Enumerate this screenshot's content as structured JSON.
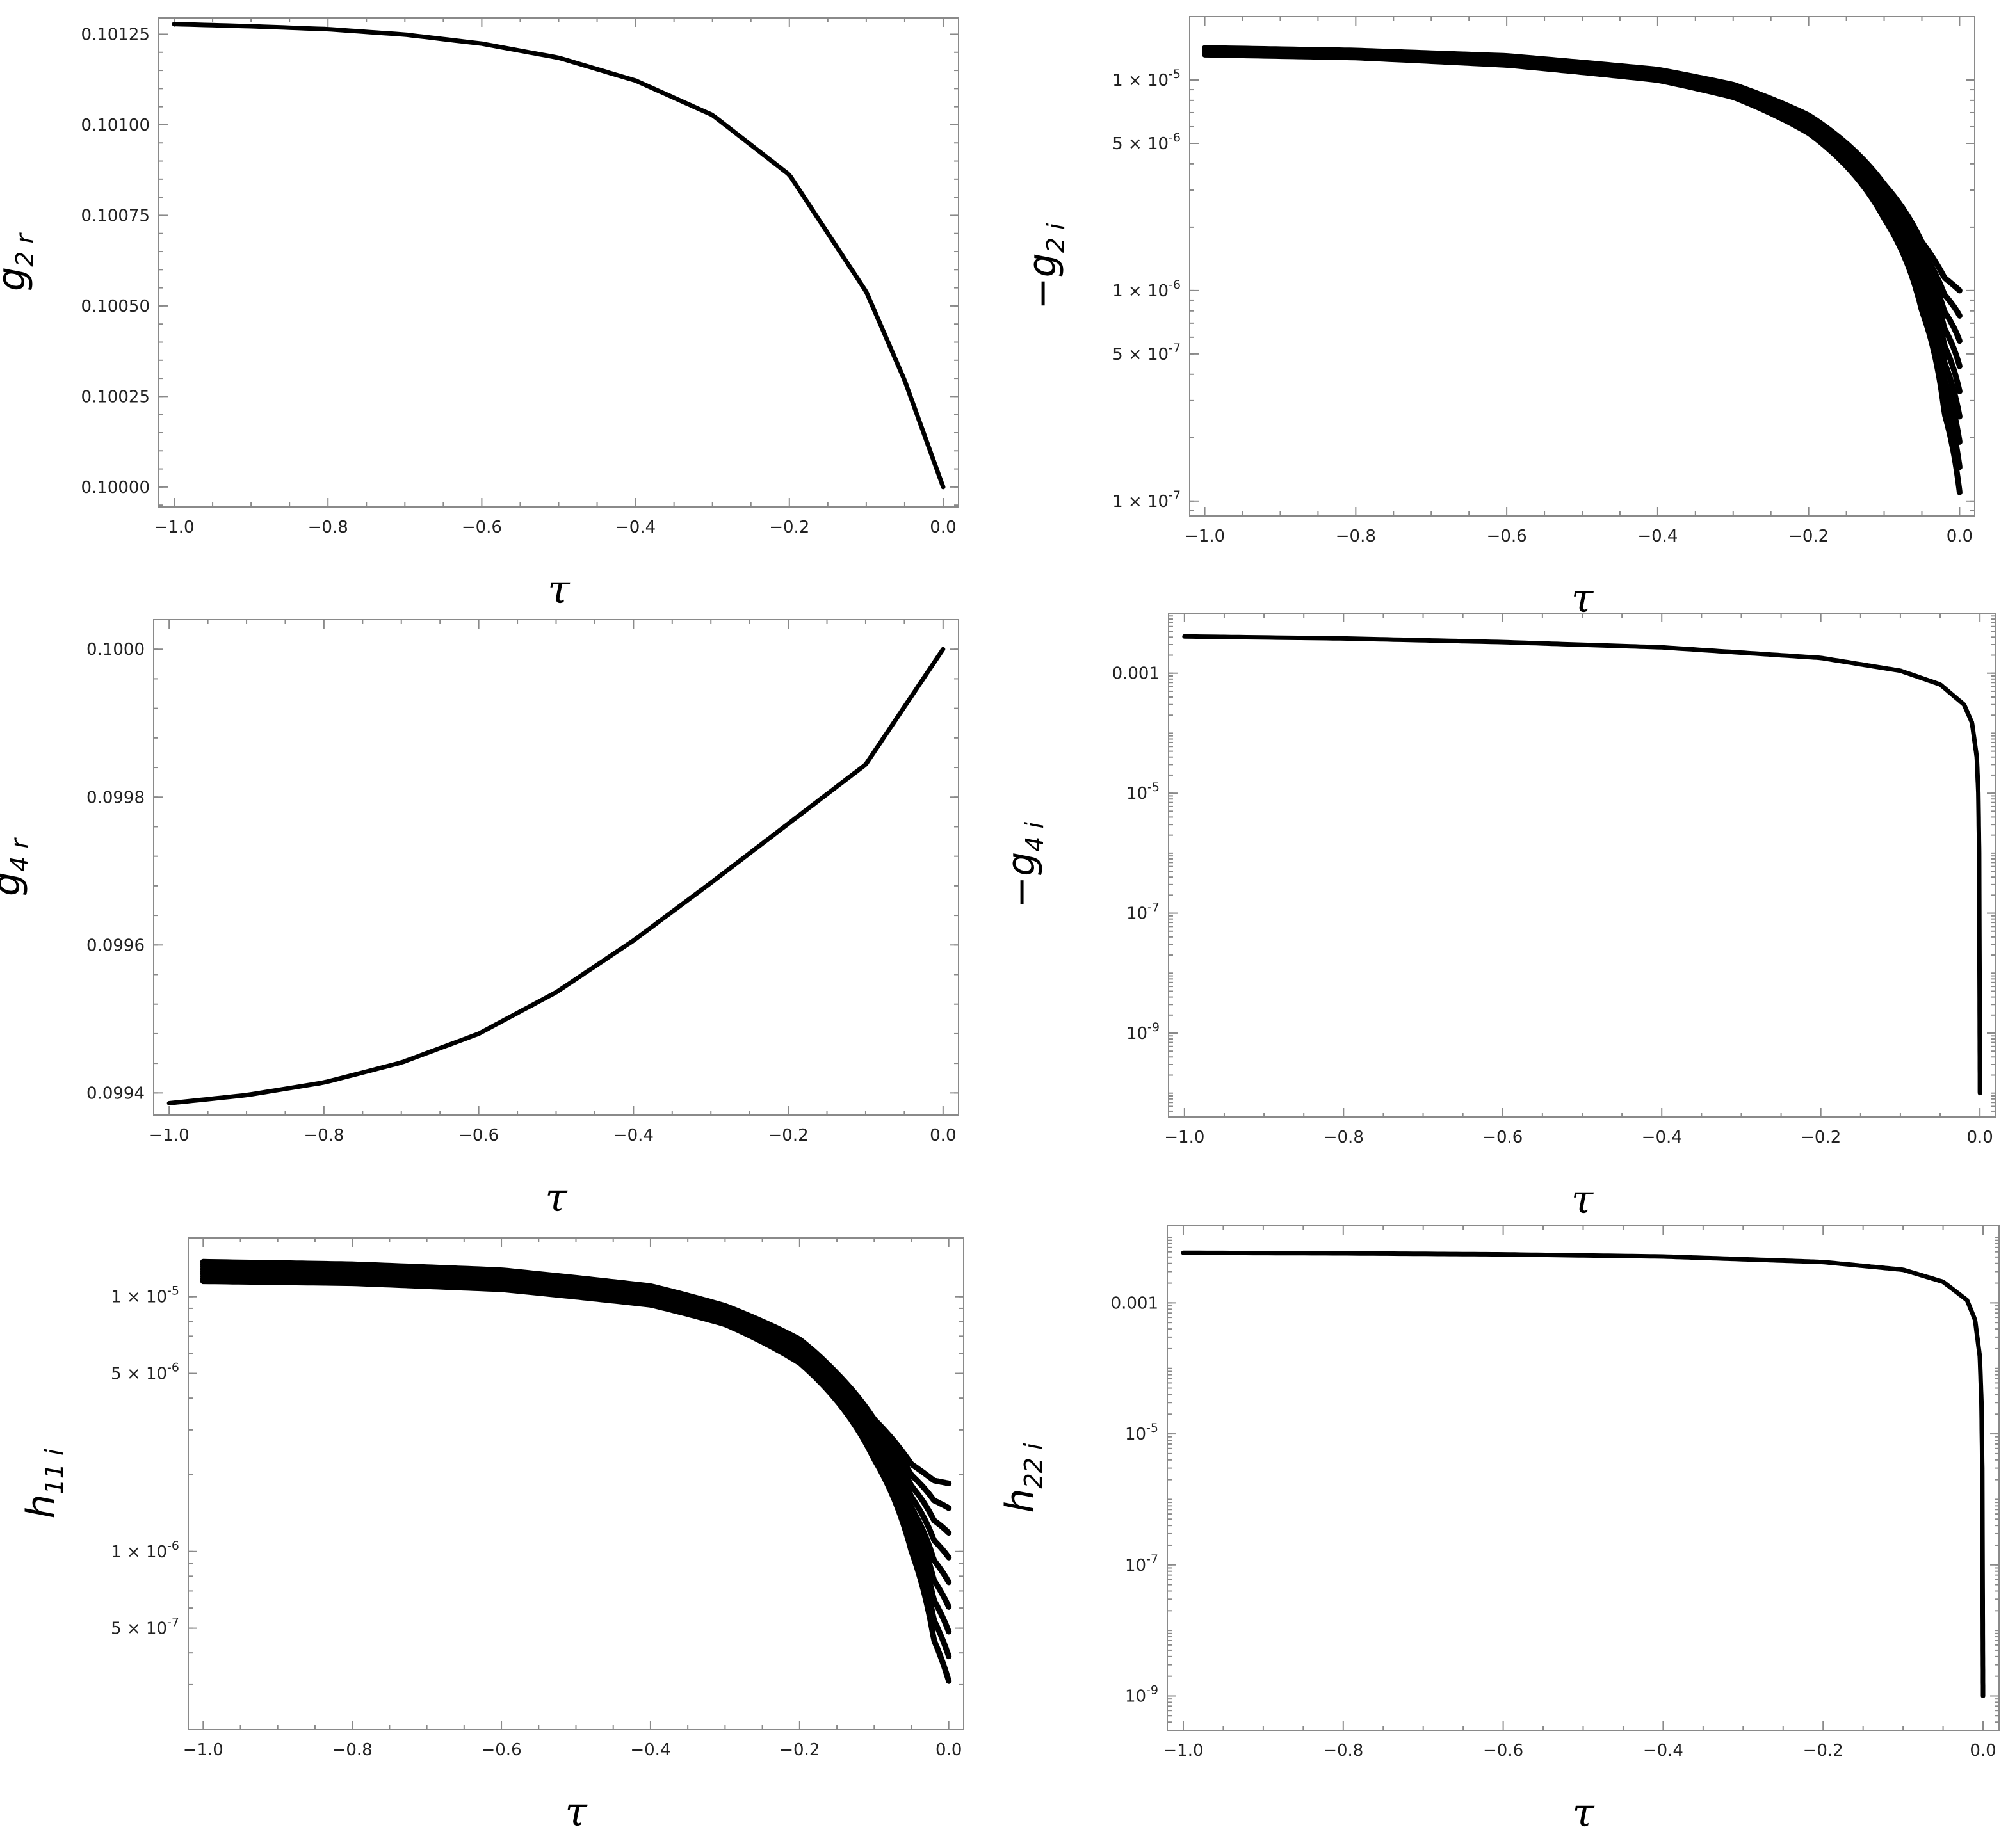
{
  "chart_data": [
    {
      "id": "g2r",
      "type": "line",
      "xlabel": "τ",
      "ylabel": {
        "main": "g",
        "sub": "2 r",
        "prefix": ""
      },
      "xlim": [
        -1.02,
        0.02
      ],
      "ylim": [
        0.099945,
        0.101295
      ],
      "log_y": false,
      "x_ticks": [
        -1.0,
        -0.8,
        -0.6,
        -0.4,
        -0.2,
        0.0
      ],
      "x_tick_labels": [
        "−1.0",
        "−0.8",
        "−0.6",
        "−0.4",
        "−0.2",
        "0.0"
      ],
      "y_ticks": [
        0.1,
        0.10025,
        0.1005,
        0.10075,
        0.101,
        0.10125
      ],
      "y_tick_labels": [
        "0.10000",
        "0.10025",
        "0.10050",
        "0.10075",
        "0.10100",
        "0.10125"
      ],
      "series": [
        {
          "x": [
            -1.0,
            -0.9,
            -0.8,
            -0.7,
            -0.6,
            -0.5,
            -0.4,
            -0.3,
            -0.2,
            -0.1,
            -0.05,
            0.0
          ],
          "values": [
            0.101278,
            0.101272,
            0.101264,
            0.101249,
            0.101224,
            0.101185,
            0.101122,
            0.101027,
            0.100862,
            0.100539,
            0.100294,
            0.1
          ]
        }
      ]
    },
    {
      "id": "g2i",
      "type": "line",
      "xlabel": "τ",
      "ylabel": {
        "main": "g",
        "sub": "2 i",
        "prefix": "−"
      },
      "xlim": [
        -1.02,
        0.02
      ],
      "ylim": [
        8.5e-08,
        2e-05
      ],
      "log_y": true,
      "x_ticks": [
        -1.0,
        -0.8,
        -0.6,
        -0.4,
        -0.2,
        0.0
      ],
      "x_tick_labels": [
        "−1.0",
        "−0.8",
        "−0.6",
        "−0.4",
        "−0.2",
        "0.0"
      ],
      "y_ticks": [
        1e-07,
        5e-07,
        1e-06,
        5e-06,
        1e-05
      ],
      "y_tick_labels": [
        "1 × 10^-7",
        "5 × 10^-7",
        "1 × 10^-6",
        "5 × 10^-6",
        "1 × 10^-5"
      ],
      "band": {
        "count": 9,
        "upper_offset_logspread": 0.08
      },
      "series": [
        {
          "x": [
            -1.0,
            -0.8,
            -0.6,
            -0.4,
            -0.3,
            -0.2,
            -0.15,
            -0.1,
            -0.05,
            -0.02,
            0.0
          ],
          "values": [
            1.42e-05,
            1.38e-05,
            1.3e-05,
            1.12e-05,
            9.5e-06,
            6.8e-06,
            5e-06,
            3.2e-06,
            1.7e-06,
            1.15e-06,
            1e-06
          ]
        },
        {
          "x": [
            -1.0,
            -0.8,
            -0.6,
            -0.4,
            -0.3,
            -0.2,
            -0.15,
            -0.1,
            -0.05,
            -0.02,
            0.0
          ],
          "values": [
            1.32e-05,
            1.28e-05,
            1.18e-05,
            1e-05,
            8.3e-06,
            5.6e-06,
            3.9e-06,
            2.2e-06,
            8e-07,
            2.6e-07,
            1.1e-07
          ]
        }
      ]
    },
    {
      "id": "g4r",
      "type": "line",
      "xlabel": "τ",
      "ylabel": {
        "main": "g",
        "sub": "4 r",
        "prefix": ""
      },
      "xlim": [
        -1.02,
        0.02
      ],
      "ylim": [
        0.09937,
        0.10004
      ],
      "log_y": false,
      "x_ticks": [
        -1.0,
        -0.8,
        -0.6,
        -0.4,
        -0.2,
        0.0
      ],
      "x_tick_labels": [
        "−1.0",
        "−0.8",
        "−0.6",
        "−0.4",
        "−0.2",
        "0.0"
      ],
      "y_ticks": [
        0.0994,
        0.0996,
        0.0998,
        0.1
      ],
      "y_tick_labels": [
        "0.0994",
        "0.0996",
        "0.0998",
        "0.1000"
      ],
      "series": [
        {
          "x": [
            -1.0,
            -0.9,
            -0.8,
            -0.7,
            -0.6,
            -0.5,
            -0.4,
            -0.3,
            -0.2,
            -0.1,
            0.0
          ],
          "values": [
            0.099386,
            0.099397,
            0.099414,
            0.099441,
            0.09948,
            0.099536,
            0.099606,
            0.099684,
            0.099764,
            0.099844,
            0.1
          ]
        }
      ]
    },
    {
      "id": "g4i",
      "type": "line",
      "xlabel": "τ",
      "ylabel": {
        "main": "g",
        "sub": "4 i",
        "prefix": "−"
      },
      "xlim": [
        -1.02,
        0.02
      ],
      "ylim": [
        4e-11,
        0.01
      ],
      "log_y": true,
      "x_ticks": [
        -1.0,
        -0.8,
        -0.6,
        -0.4,
        -0.2,
        0.0
      ],
      "x_tick_labels": [
        "−1.0",
        "−0.8",
        "−0.6",
        "−0.4",
        "−0.2",
        "0.0"
      ],
      "y_ticks": [
        0.001,
        1e-05,
        1e-07,
        1e-09
      ],
      "y_tick_labels": [
        "0.001",
        "10^-5",
        "10^-7",
        "10^-9"
      ],
      "series": [
        {
          "x": [
            -1.0,
            -0.8,
            -0.6,
            -0.4,
            -0.2,
            -0.1,
            -0.05,
            -0.02,
            -0.01,
            -0.004,
            -0.002,
            -0.001,
            -0.0005,
            0.0
          ],
          "values": [
            0.0041,
            0.0038,
            0.0033,
            0.0027,
            0.0018,
            0.0011,
            0.00065,
            0.0003,
            0.00015,
            4e-05,
            1e-05,
            1e-06,
            1e-08,
            1e-10
          ]
        }
      ]
    },
    {
      "id": "h11i",
      "type": "line",
      "xlabel": "τ",
      "ylabel": {
        "main": "h",
        "sub": "11 i",
        "prefix": ""
      },
      "xlim": [
        -1.02,
        0.02
      ],
      "ylim": [
        2e-07,
        1.7e-05
      ],
      "log_y": true,
      "x_ticks": [
        -1.0,
        -0.8,
        -0.6,
        -0.4,
        -0.2,
        0.0
      ],
      "x_tick_labels": [
        "−1.0",
        "−0.8",
        "−0.6",
        "−0.4",
        "−0.2",
        "0.0"
      ],
      "y_ticks": [
        5e-07,
        1e-06,
        5e-06,
        1e-05
      ],
      "y_tick_labels": [
        "5 × 10^-7",
        "1 × 10^-6",
        "5 × 10^-6",
        "1 × 10^-5"
      ],
      "band": {
        "count": 9,
        "upper_offset_logspread": 0.1
      },
      "series": [
        {
          "x": [
            -1.0,
            -0.8,
            -0.6,
            -0.4,
            -0.3,
            -0.2,
            -0.15,
            -0.1,
            -0.05,
            -0.02,
            0.0
          ],
          "values": [
            1.37e-05,
            1.34e-05,
            1.27e-05,
            1.1e-05,
            9.2e-06,
            6.8e-06,
            5e-06,
            3.3e-06,
            2.2e-06,
            1.9e-06,
            1.85e-06
          ]
        },
        {
          "x": [
            -1.0,
            -0.8,
            -0.6,
            -0.4,
            -0.3,
            -0.2,
            -0.15,
            -0.1,
            -0.05,
            -0.02,
            0.0
          ],
          "values": [
            1.15e-05,
            1.13e-05,
            1.07e-05,
            9.3e-06,
            7.8e-06,
            5.5e-06,
            3.9e-06,
            2.3e-06,
            1e-06,
            4.5e-07,
            3.1e-07
          ]
        }
      ]
    },
    {
      "id": "h22i",
      "type": "line",
      "xlabel": "τ",
      "ylabel": {
        "main": "h",
        "sub": "22 i",
        "prefix": ""
      },
      "xlim": [
        -1.02,
        0.02
      ],
      "ylim": [
        3e-10,
        0.015
      ],
      "log_y": true,
      "x_ticks": [
        -1.0,
        -0.8,
        -0.6,
        -0.4,
        -0.2,
        0.0
      ],
      "x_tick_labels": [
        "−1.0",
        "−0.8",
        "−0.6",
        "−0.4",
        "−0.2",
        "0.0"
      ],
      "y_ticks": [
        0.001,
        1e-05,
        1e-07,
        1e-09
      ],
      "y_tick_labels": [
        "0.001",
        "10^-5",
        "10^-7",
        "10^-9"
      ],
      "series": [
        {
          "x": [
            -1.0,
            -0.8,
            -0.6,
            -0.4,
            -0.2,
            -0.1,
            -0.05,
            -0.02,
            -0.01,
            -0.004,
            -0.002,
            -0.001,
            -0.0005,
            0.0
          ],
          "values": [
            0.0058,
            0.0057,
            0.0055,
            0.0051,
            0.0042,
            0.0032,
            0.0021,
            0.0011,
            0.00055,
            0.00015,
            3e-05,
            3e-06,
            4e-08,
            1e-09
          ]
        }
      ]
    }
  ]
}
